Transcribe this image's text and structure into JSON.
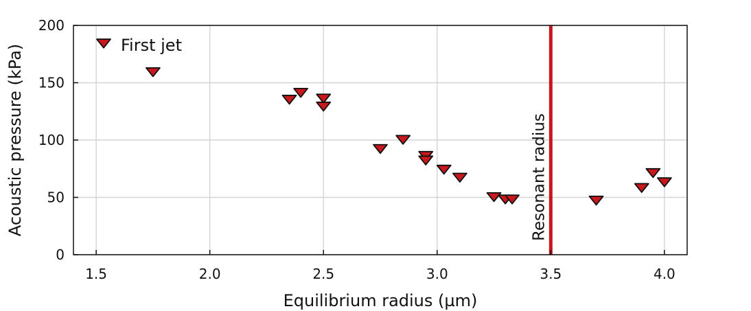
{
  "chart_data": {
    "type": "scatter",
    "xlabel": "Equilibrium radius (µm)",
    "ylabel": "Acoustic pressure (kPa)",
    "xlim": [
      1.4,
      4.1
    ],
    "ylim": [
      0,
      200
    ],
    "xticks": [
      1.5,
      2.0,
      2.5,
      3.0,
      3.5,
      4.0
    ],
    "xtick_labels": [
      "1.5",
      "2.0",
      "2.5",
      "3.0",
      "3.5",
      "4.0"
    ],
    "yticks": [
      0,
      50,
      100,
      150,
      200
    ],
    "ytick_labels": [
      "0",
      "50",
      "100",
      "150",
      "200"
    ],
    "grid": true,
    "legend_position": "top-left",
    "series": [
      {
        "name": "First jet",
        "marker": "down-triangle",
        "color": "#c8171d",
        "points": [
          {
            "x": 1.75,
            "y": 160
          },
          {
            "x": 2.35,
            "y": 136
          },
          {
            "x": 2.4,
            "y": 142
          },
          {
            "x": 2.5,
            "y": 137
          },
          {
            "x": 2.5,
            "y": 130
          },
          {
            "x": 2.75,
            "y": 93
          },
          {
            "x": 2.85,
            "y": 101
          },
          {
            "x": 2.95,
            "y": 87
          },
          {
            "x": 2.95,
            "y": 83
          },
          {
            "x": 3.03,
            "y": 75
          },
          {
            "x": 3.1,
            "y": 68
          },
          {
            "x": 3.25,
            "y": 51
          },
          {
            "x": 3.3,
            "y": 49
          },
          {
            "x": 3.33,
            "y": 49
          },
          {
            "x": 3.7,
            "y": 48
          },
          {
            "x": 3.9,
            "y": 59
          },
          {
            "x": 3.95,
            "y": 72
          },
          {
            "x": 4.0,
            "y": 64
          }
        ]
      }
    ],
    "annotations": [
      {
        "type": "vline",
        "x": 3.5,
        "label": "Resonant radius",
        "color": "#c8171d"
      }
    ]
  }
}
